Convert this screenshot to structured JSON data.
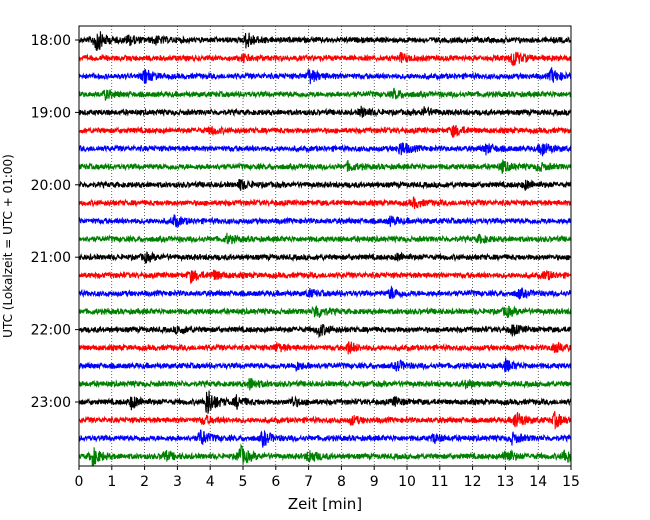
{
  "chart_data": {
    "type": "line",
    "title": "",
    "xlabel": "Zeit  [min]",
    "ylabel": "UTC (Lokalzeit = UTC + 01:00)",
    "xlim": [
      0,
      15
    ],
    "x_ticks": [
      "0",
      "1",
      "2",
      "3",
      "4",
      "5",
      "6",
      "7",
      "8",
      "9",
      "10",
      "11",
      "12",
      "13",
      "14",
      "15"
    ],
    "y_ticks": [
      "18:00",
      "19:00",
      "20:00",
      "21:00",
      "22:00",
      "23:00"
    ],
    "grid": "vertical-dotted",
    "line_colors": [
      "#000000",
      "#ff0000",
      "#0000ff",
      "#008000"
    ],
    "series": [
      {
        "start": "18:00",
        "color": "#000000",
        "events": [
          [
            0.5,
            3.2
          ],
          [
            1.5,
            1.2
          ],
          [
            5.1,
            2.0
          ],
          [
            2.3,
            0.9
          ]
        ]
      },
      {
        "start": "18:15",
        "color": "#ff0000",
        "events": [
          [
            13.2,
            2.2
          ],
          [
            9.8,
            1.0
          ],
          [
            5.0,
            0.8
          ]
        ]
      },
      {
        "start": "18:30",
        "color": "#0000ff",
        "events": [
          [
            2.0,
            1.6
          ],
          [
            7.0,
            1.8
          ],
          [
            14.4,
            1.6
          ]
        ]
      },
      {
        "start": "18:45",
        "color": "#008000",
        "events": [
          [
            0.8,
            1.0
          ],
          [
            9.6,
            1.0
          ]
        ]
      },
      {
        "start": "19:00",
        "color": "#000000",
        "events": [
          [
            8.6,
            1.1
          ],
          [
            10.5,
            1.0
          ]
        ]
      },
      {
        "start": "19:15",
        "color": "#ff0000",
        "events": [
          [
            11.4,
            1.4
          ],
          [
            4.0,
            0.8
          ]
        ]
      },
      {
        "start": "19:30",
        "color": "#0000ff",
        "events": [
          [
            9.8,
            1.7
          ],
          [
            14.1,
            1.8
          ],
          [
            12.4,
            1.2
          ]
        ]
      },
      {
        "start": "19:45",
        "color": "#008000",
        "events": [
          [
            8.2,
            1.0
          ],
          [
            12.9,
            1.3
          ],
          [
            14.0,
            0.9
          ]
        ]
      },
      {
        "start": "20:00",
        "color": "#000000",
        "events": [
          [
            4.9,
            1.2
          ],
          [
            13.6,
            1.0
          ]
        ]
      },
      {
        "start": "20:15",
        "color": "#ff0000",
        "events": [
          [
            10.2,
            1.1
          ]
        ]
      },
      {
        "start": "20:30",
        "color": "#0000ff",
        "events": [
          [
            2.9,
            1.3
          ],
          [
            9.5,
            1.0
          ]
        ]
      },
      {
        "start": "20:45",
        "color": "#008000",
        "events": [
          [
            4.5,
            1.0
          ],
          [
            12.2,
            0.8
          ]
        ]
      },
      {
        "start": "21:00",
        "color": "#000000",
        "events": [
          [
            2.0,
            1.0
          ],
          [
            9.7,
            0.8
          ]
        ]
      },
      {
        "start": "21:15",
        "color": "#ff0000",
        "events": [
          [
            3.4,
            1.4
          ],
          [
            4.1,
            1.0
          ],
          [
            14.2,
            1.0
          ]
        ]
      },
      {
        "start": "21:30",
        "color": "#0000ff",
        "events": [
          [
            9.5,
            1.4
          ],
          [
            13.4,
            1.0
          ],
          [
            7.0,
            0.8
          ]
        ]
      },
      {
        "start": "21:45",
        "color": "#008000",
        "events": [
          [
            7.2,
            1.8
          ],
          [
            13.0,
            1.2
          ]
        ]
      },
      {
        "start": "22:00",
        "color": "#000000",
        "events": [
          [
            7.3,
            1.6
          ],
          [
            13.2,
            1.2
          ],
          [
            3.0,
            0.9
          ]
        ]
      },
      {
        "start": "22:15",
        "color": "#ff0000",
        "events": [
          [
            8.2,
            1.5
          ],
          [
            14.5,
            1.4
          ],
          [
            6.0,
            1.0
          ]
        ]
      },
      {
        "start": "22:30",
        "color": "#0000ff",
        "events": [
          [
            13.0,
            1.4
          ],
          [
            9.7,
            1.2
          ],
          [
            6.6,
            1.0
          ]
        ]
      },
      {
        "start": "22:45",
        "color": "#008000",
        "events": [
          [
            5.2,
            1.3
          ],
          [
            11.8,
            0.9
          ]
        ]
      },
      {
        "start": "23:00",
        "color": "#000000",
        "events": [
          [
            3.9,
            3.5
          ],
          [
            1.6,
            1.6
          ],
          [
            4.8,
            1.4
          ],
          [
            6.5,
            1.0
          ],
          [
            9.6,
            1.0
          ]
        ]
      },
      {
        "start": "23:15",
        "color": "#ff0000",
        "events": [
          [
            13.3,
            2.2
          ],
          [
            14.5,
            1.8
          ],
          [
            3.8,
            1.0
          ],
          [
            8.3,
            1.0
          ]
        ]
      },
      {
        "start": "23:30",
        "color": "#0000ff",
        "events": [
          [
            3.7,
            2.0
          ],
          [
            5.6,
            1.8
          ],
          [
            13.2,
            1.2
          ],
          [
            10.8,
            1.0
          ]
        ]
      },
      {
        "start": "23:45",
        "color": "#008000",
        "events": [
          [
            0.4,
            2.2
          ],
          [
            4.9,
            2.6
          ],
          [
            7.0,
            1.6
          ],
          [
            13.0,
            1.8
          ],
          [
            14.8,
            1.6
          ],
          [
            2.6,
            1.2
          ]
        ]
      }
    ]
  }
}
